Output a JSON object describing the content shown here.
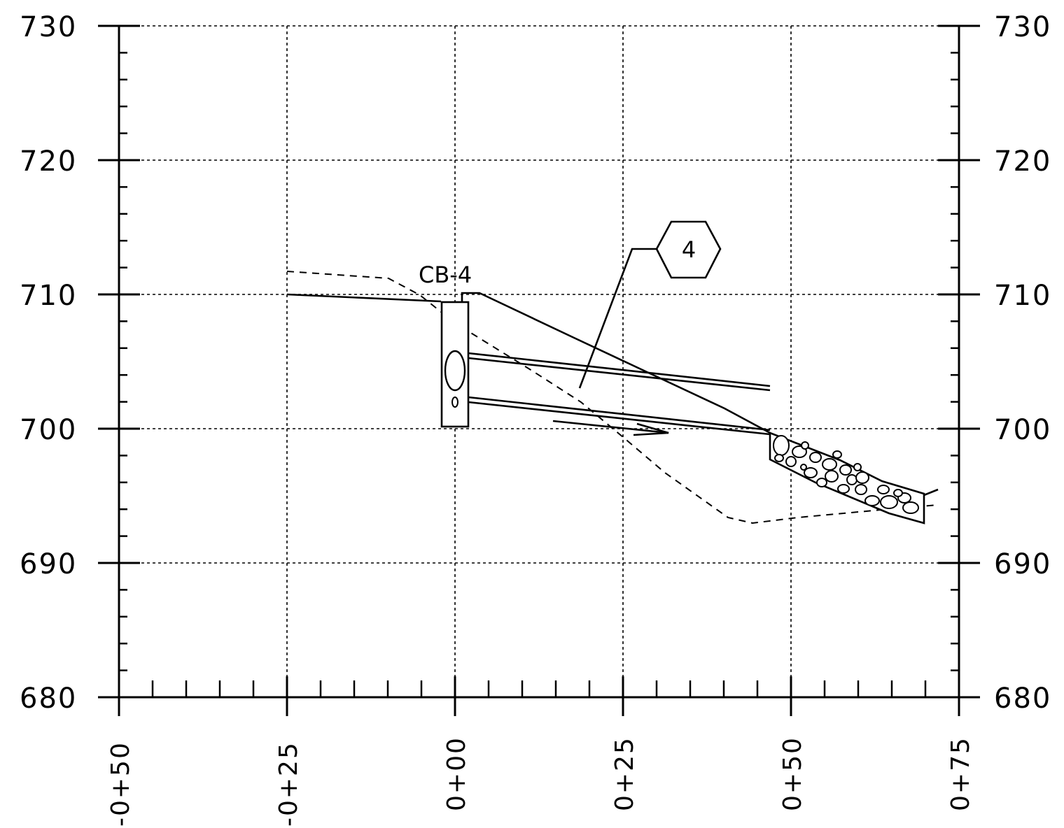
{
  "diagram": {
    "elevation_labels_left": [
      "730",
      "720",
      "710",
      "700",
      "690",
      "680"
    ],
    "elevation_labels_right": [
      "730",
      "720",
      "710",
      "700",
      "690",
      "680"
    ],
    "station_labels": [
      "-0+50",
      "-0+25",
      "0+00",
      "0+25",
      "0+50",
      "0+75"
    ],
    "structure_label": "CB-4",
    "callout_number": "4",
    "colors": {
      "ink": "#000000",
      "background": "#ffffff"
    }
  }
}
